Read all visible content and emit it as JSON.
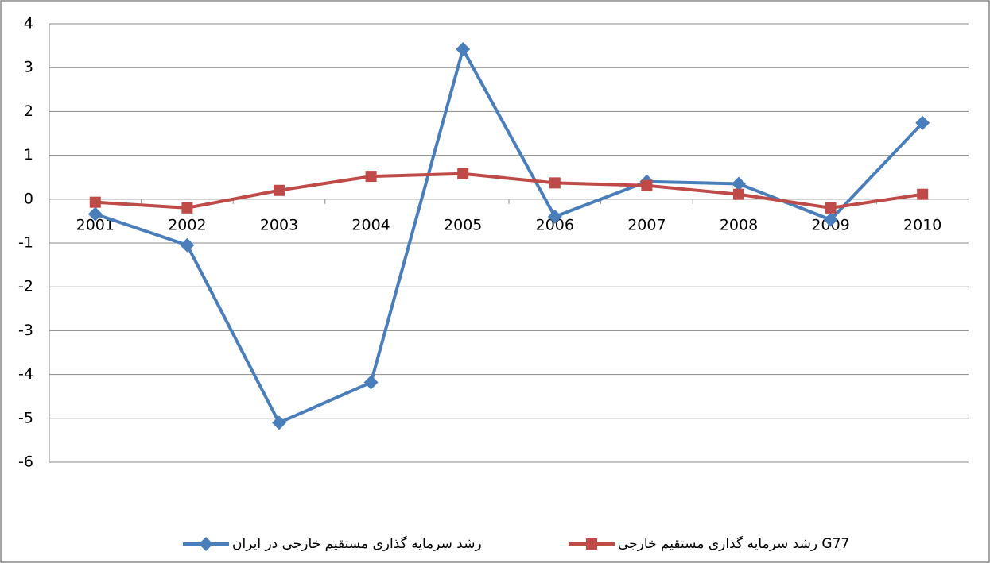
{
  "chart_data": {
    "type": "line",
    "categories": [
      "2001",
      "2002",
      "2003",
      "2004",
      "2005",
      "2006",
      "2007",
      "2008",
      "2009",
      "2010"
    ],
    "series": [
      {
        "name": "رشد سرمایه گذاری مستقیم خارجی در ایران",
        "color": "#4a7ebb",
        "marker": "diamond",
        "values": [
          -0.34,
          -1.05,
          -5.1,
          -4.18,
          3.42,
          -0.4,
          0.4,
          0.35,
          -0.47,
          1.74
        ]
      },
      {
        "name": "رشد سرمایه گذاری مستقیم خارجی G77",
        "color": "#be4b48",
        "marker": "square",
        "values": [
          -0.07,
          -0.2,
          0.2,
          0.52,
          0.58,
          0.37,
          0.31,
          0.11,
          -0.2,
          0.11
        ]
      }
    ],
    "ylim": [
      -6,
      4
    ],
    "yticks": [
      -6,
      -5,
      -4,
      -3,
      -2,
      -1,
      0,
      1,
      2,
      3,
      4
    ],
    "grid": true,
    "legend": "bottom"
  }
}
